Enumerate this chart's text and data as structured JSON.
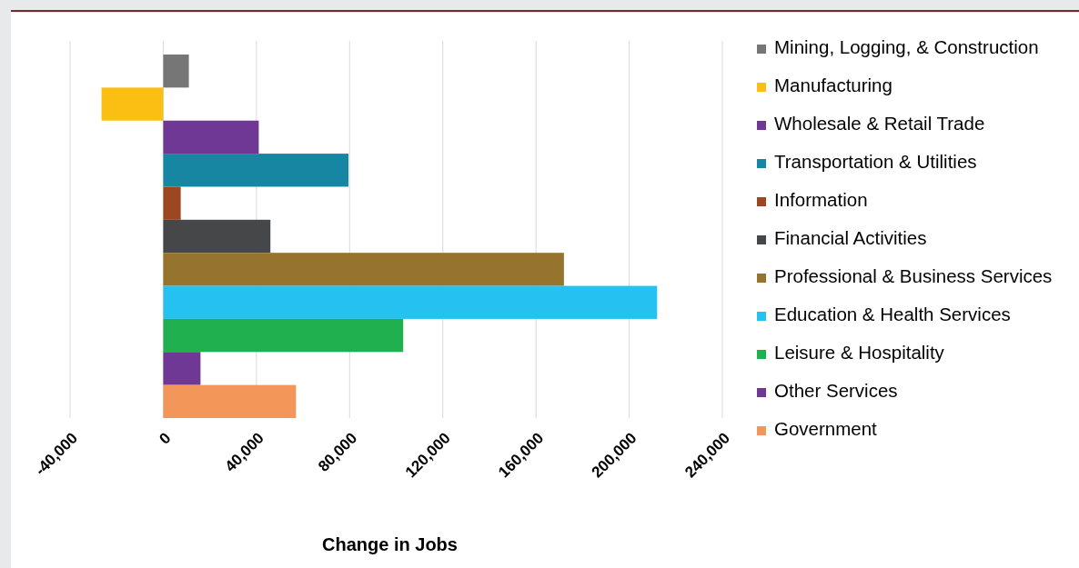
{
  "chart_data": {
    "type": "bar",
    "orientation": "horizontal",
    "categories": [
      null
    ],
    "series": [
      {
        "name": "Mining, Logging, & Construction",
        "color": "#767676",
        "values": [
          11000
        ]
      },
      {
        "name": "Manufacturing",
        "color": "#fbbf14",
        "values": [
          -26500
        ]
      },
      {
        "name": "Wholesale & Retail Trade",
        "color": "#6f3894",
        "values": [
          41000
        ]
      },
      {
        "name": "Transportation & Utilities",
        "color": "#1786a3",
        "values": [
          79500
        ]
      },
      {
        "name": "Information",
        "color": "#9c4622",
        "values": [
          7500
        ]
      },
      {
        "name": "Financial Activities",
        "color": "#464749",
        "values": [
          46000
        ]
      },
      {
        "name": "Professional & Business Services",
        "color": "#96742d",
        "values": [
          172000
        ]
      },
      {
        "name": "Education & Health Services",
        "color": "#25c1f0",
        "values": [
          212000
        ]
      },
      {
        "name": "Leisure & Hospitality",
        "color": "#20b04f",
        "values": [
          103000
        ]
      },
      {
        "name": "Other Services",
        "color": "#6f3894",
        "values": [
          16000
        ]
      },
      {
        "name": "Government",
        "color": "#f29659",
        "values": [
          57000
        ]
      }
    ],
    "xlim": [
      -40000,
      240000
    ],
    "xticks": [
      {
        "value": -40000,
        "label": "-40,000"
      },
      0,
      {
        "value": 40000,
        "label": "40,000"
      },
      {
        "value": 80000,
        "label": "80,000"
      },
      {
        "value": 120000,
        "label": "120,000"
      },
      {
        "value": 160000,
        "label": "160,000"
      },
      {
        "value": 200000,
        "label": "200,000"
      },
      {
        "value": 240000,
        "label": "240,000"
      }
    ],
    "xlabel": "Change in Jobs",
    "grid": "x",
    "legend": "right",
    "tick_labels": "x"
  }
}
